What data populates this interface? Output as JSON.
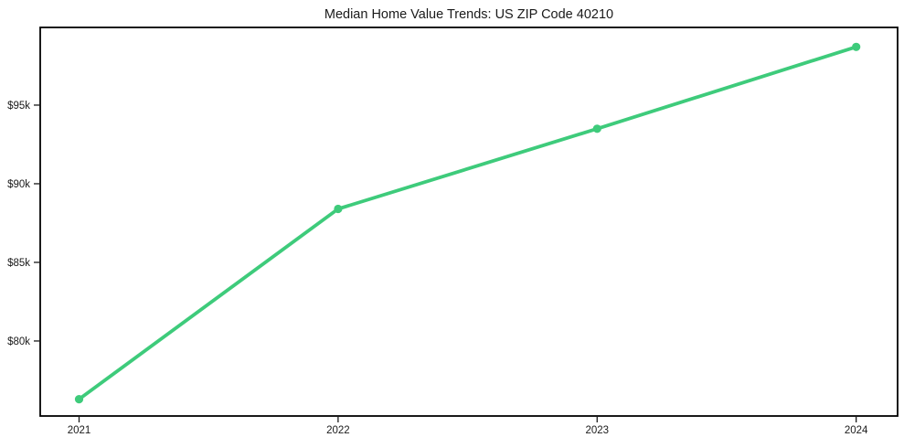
{
  "chart_data": {
    "type": "line",
    "title": "Median Home Value Trends: US ZIP Code 40210",
    "xlabel": "",
    "ylabel": "",
    "x": [
      2021,
      2022,
      2023,
      2024
    ],
    "x_tick_labels": [
      "2021",
      "2022",
      "2023",
      "2024"
    ],
    "values": [
      76300,
      88400,
      93500,
      98700
    ],
    "y_ticks": [
      {
        "value": 80000,
        "label": "$80k"
      },
      {
        "value": 85000,
        "label": "$85k"
      },
      {
        "value": 90000,
        "label": "$90k"
      },
      {
        "value": 95000,
        "label": "$95k"
      }
    ],
    "xlim": [
      2020.85,
      2024.16
    ],
    "ylim": [
      75230,
      99940
    ],
    "grid": false,
    "legend": "none",
    "marker": "circle",
    "line_color": "#3ecb7b",
    "frame_color": "#000000",
    "text_color": "#1a1a1a",
    "background": "#ffffff"
  }
}
